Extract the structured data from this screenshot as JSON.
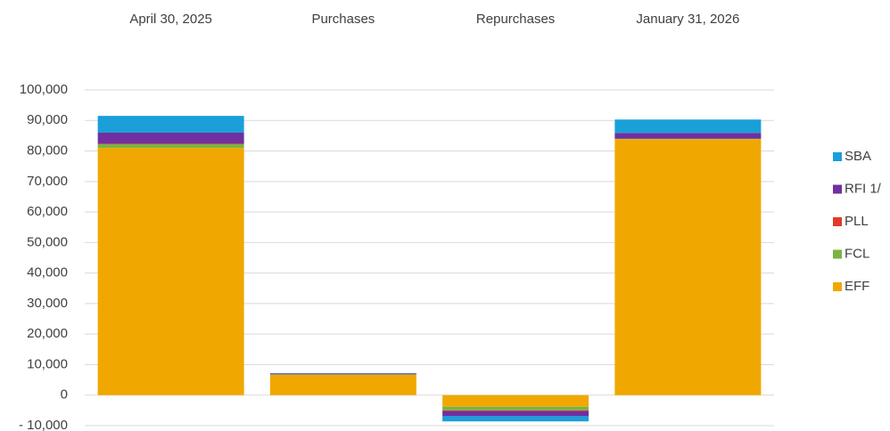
{
  "chart_data": {
    "type": "stacked_bar",
    "categories": [
      "April 30, 2025",
      "Purchases",
      "Repurchases",
      "January 31, 2026"
    ],
    "series": [
      {
        "name": "SBA",
        "color": "#1a9fd9",
        "values": [
          5500,
          100,
          -1700,
          4400
        ]
      },
      {
        "name": "RFI 1/",
        "color": "#7030a0",
        "values": [
          3600,
          300,
          -1700,
          1900
        ]
      },
      {
        "name": "PLL",
        "color": "#e03a2a",
        "values": [
          200,
          0,
          -200,
          0
        ]
      },
      {
        "name": "FCL",
        "color": "#7cb342",
        "values": [
          1200,
          100,
          -1200,
          100
        ]
      },
      {
        "name": "EFF",
        "color": "#f0a800",
        "values": [
          81000,
          6700,
          -3800,
          83900
        ]
      }
    ],
    "ylim": [
      -10000,
      100000
    ],
    "yticks": [
      {
        "value": -10000,
        "label": "- 10,000"
      },
      0,
      {
        "value": 10000,
        "label": "10,000"
      },
      {
        "value": 20000,
        "label": "20,000"
      },
      {
        "value": 30000,
        "label": "30,000"
      },
      {
        "value": 40000,
        "label": "40,000"
      },
      {
        "value": 50000,
        "label": "50,000"
      },
      {
        "value": 60000,
        "label": "60,000"
      },
      {
        "value": 70000,
        "label": "70,000"
      },
      {
        "value": 80000,
        "label": "80,000"
      },
      {
        "value": 90000,
        "label": "90,000"
      },
      {
        "value": 100000,
        "label": "100,000"
      }
    ],
    "grid": true,
    "legend": "right"
  }
}
